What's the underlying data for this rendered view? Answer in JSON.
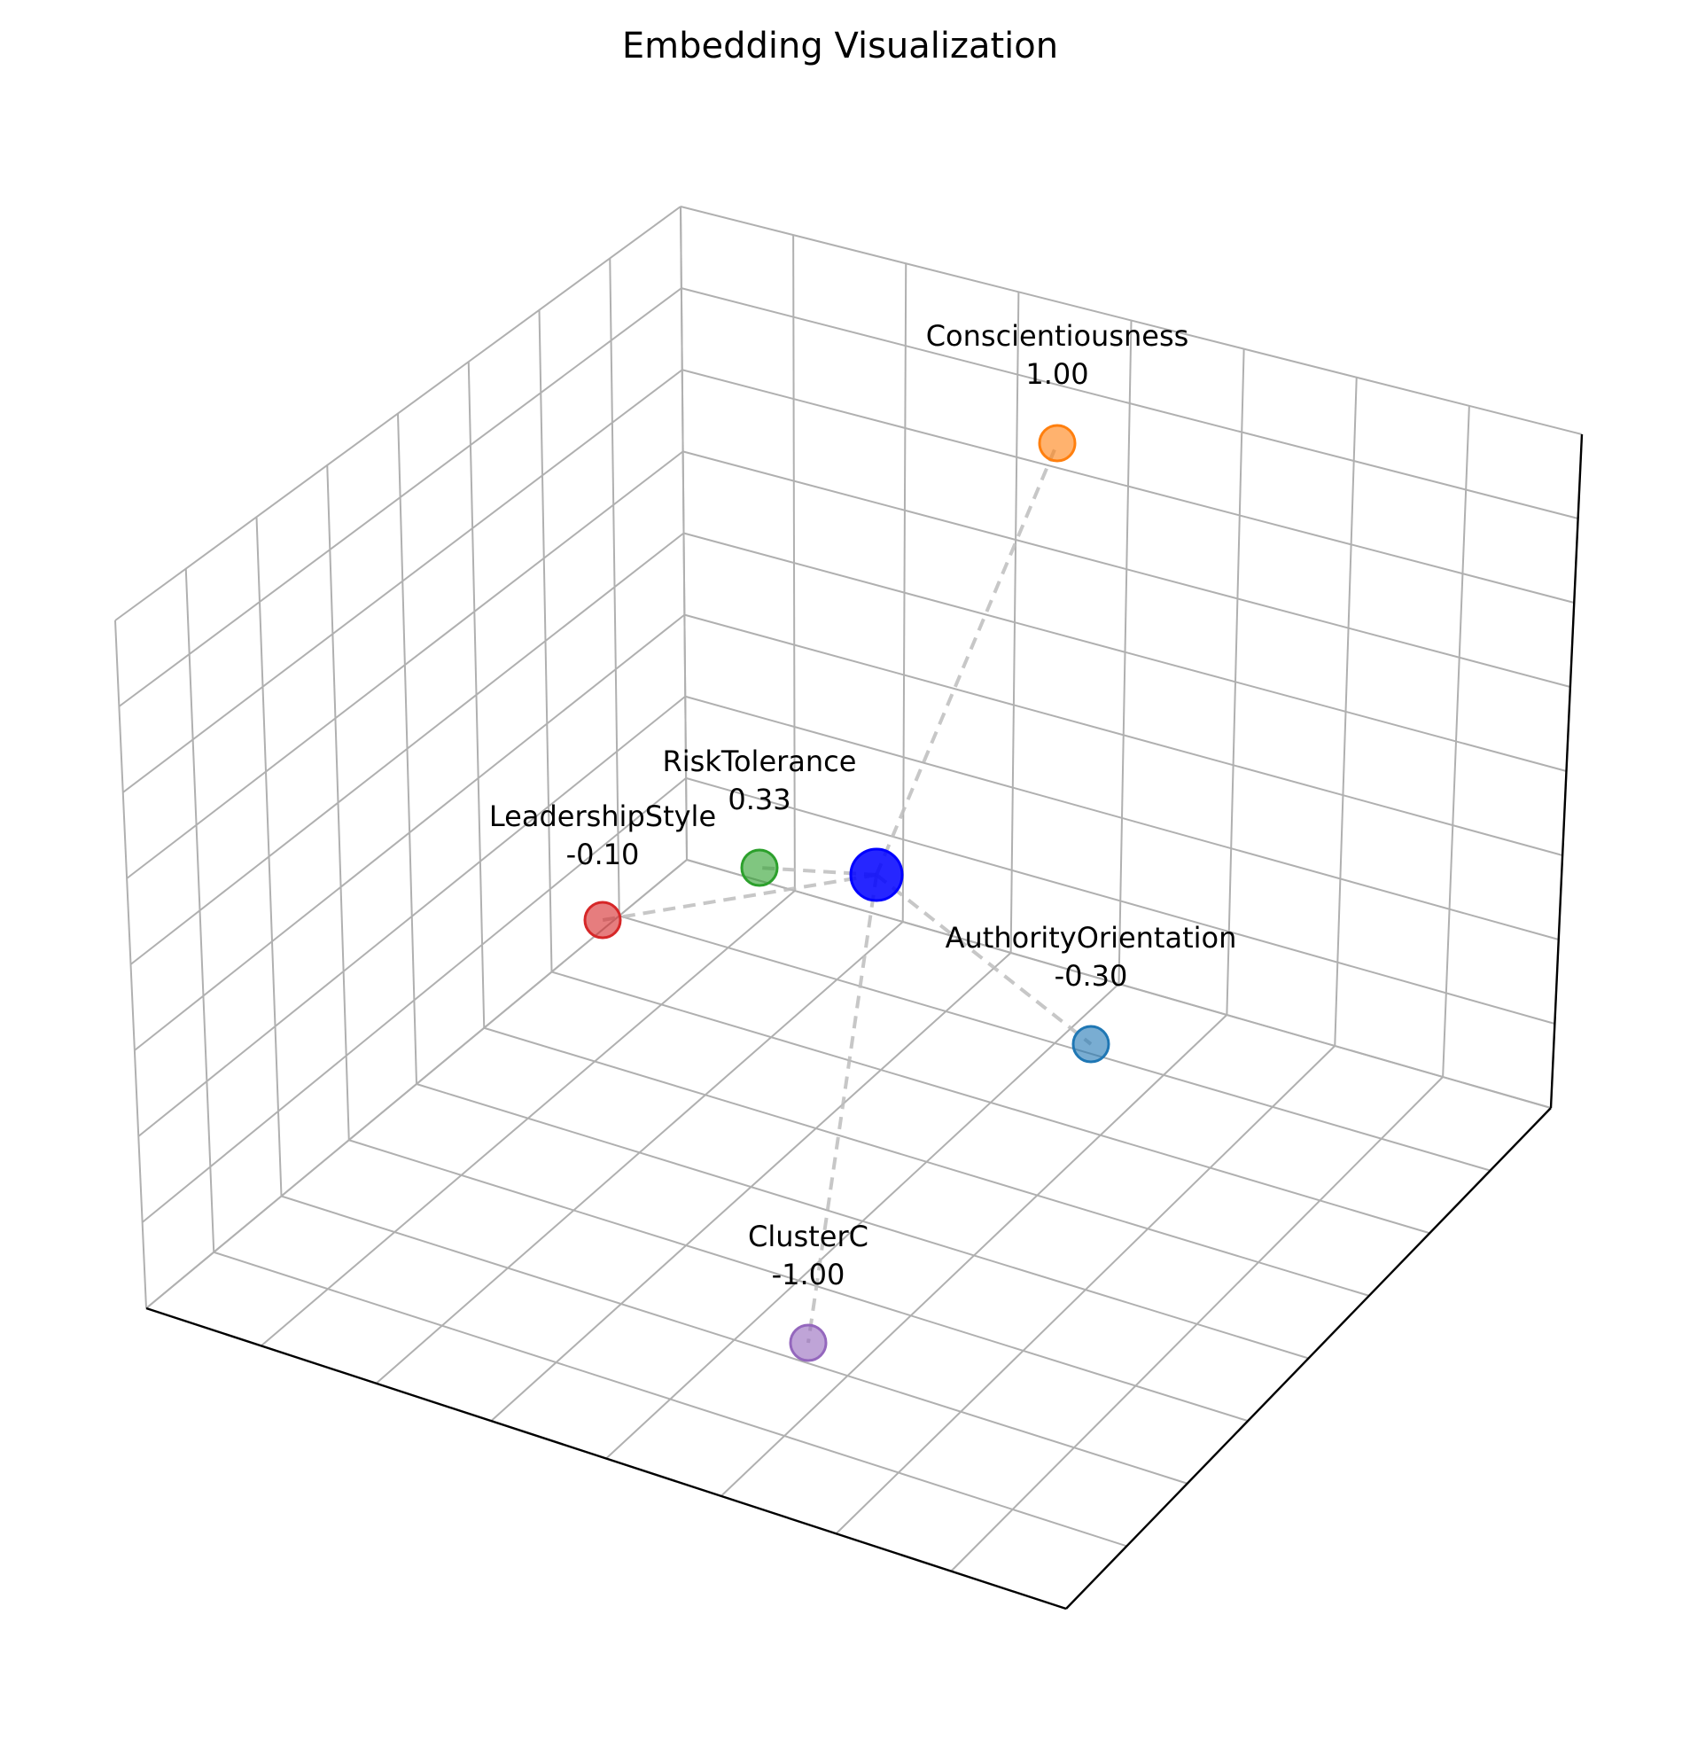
{
  "chart_data": {
    "type": "scatter",
    "title": "Embedding Visualization",
    "xlabel": "",
    "ylabel": "",
    "zlabel": "",
    "grid": true,
    "projection": "3d",
    "center_point": {
      "color": "#0000ff"
    },
    "points": [
      {
        "name": "Conscientiousness",
        "value_label": "1.00",
        "color": "#ff7f0e"
      },
      {
        "name": "RiskTolerance",
        "value_label": "0.33",
        "color": "#2ca02c"
      },
      {
        "name": "LeadershipStyle",
        "value_label": "-0.10",
        "color": "#d62728"
      },
      {
        "name": "AuthorityOrientation",
        "value_label": "-0.30",
        "color": "#1f77b4"
      },
      {
        "name": "ClusterC",
        "value_label": "-1.00",
        "color": "#9467bd"
      }
    ]
  }
}
